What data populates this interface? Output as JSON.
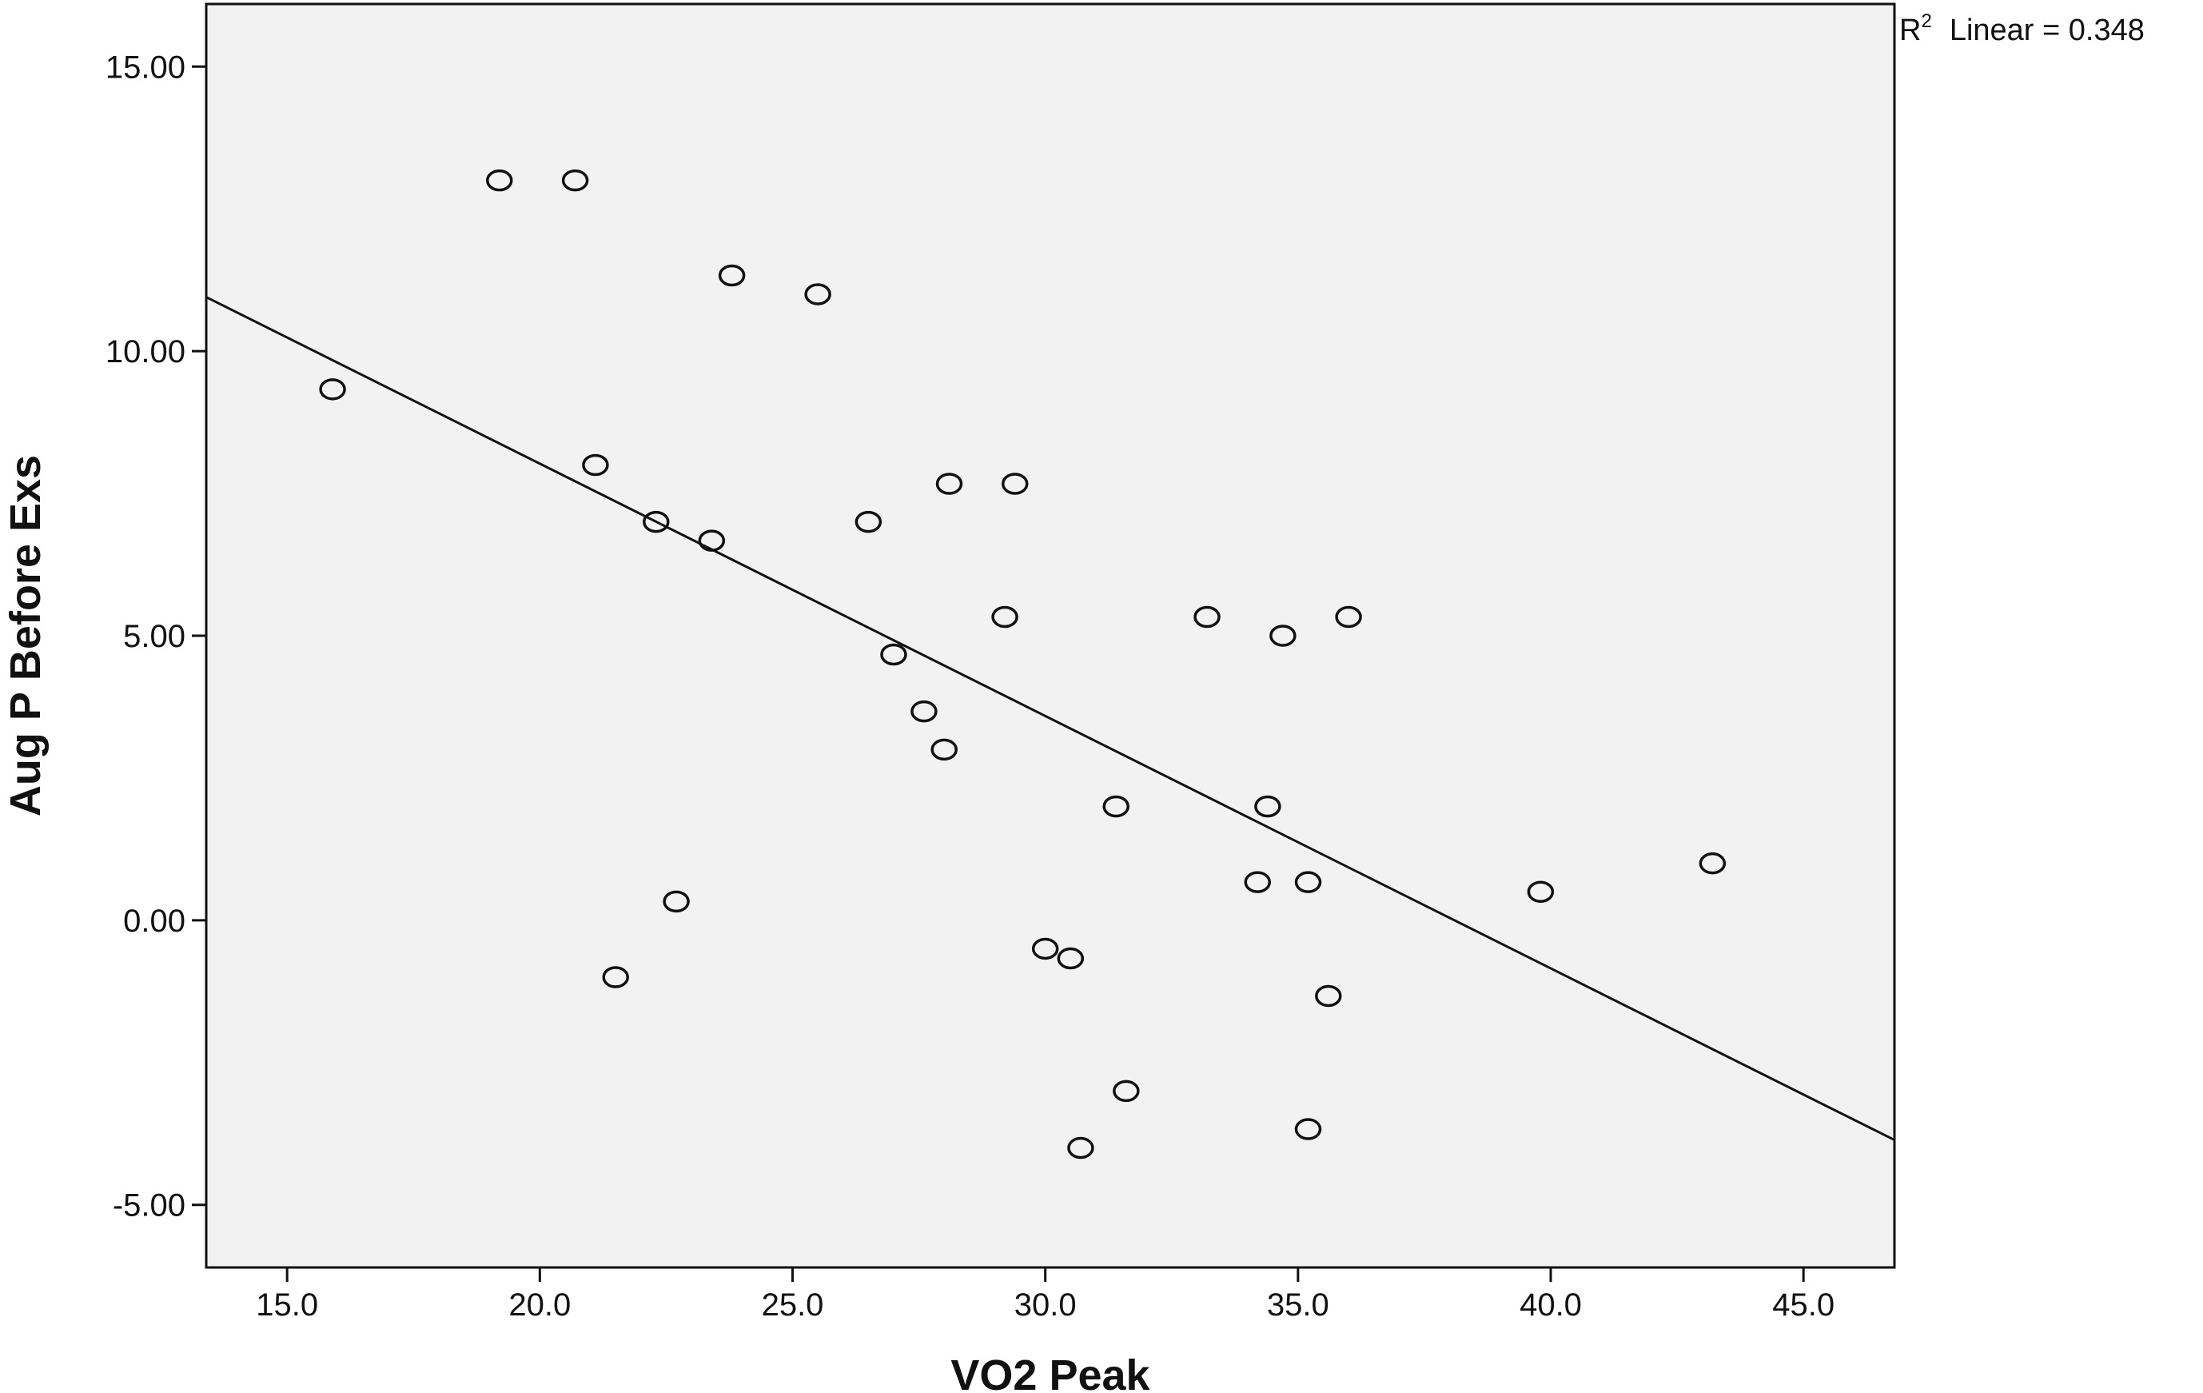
{
  "chart_data": {
    "type": "scatter",
    "title": "",
    "xlabel": "VO2 Peak",
    "ylabel": "Aug P Before Exs",
    "xlim": [
      13.4,
      46.8
    ],
    "ylim": [
      -6.1,
      16.1
    ],
    "x_ticks": [
      "15.0",
      "20.0",
      "25.0",
      "30.0",
      "35.0",
      "40.0",
      "45.0"
    ],
    "y_ticks": [
      "15.00",
      "10.00",
      "5.00",
      "0.00",
      "-5.00"
    ],
    "grid": false,
    "points": [
      {
        "x": 15.9,
        "y": 9.33
      },
      {
        "x": 19.2,
        "y": 13.0
      },
      {
        "x": 20.7,
        "y": 13.0
      },
      {
        "x": 21.1,
        "y": 8.0
      },
      {
        "x": 21.5,
        "y": -1.0
      },
      {
        "x": 22.3,
        "y": 7.0
      },
      {
        "x": 22.7,
        "y": 0.33
      },
      {
        "x": 23.4,
        "y": 6.67
      },
      {
        "x": 23.8,
        "y": 11.33
      },
      {
        "x": 25.5,
        "y": 11.0
      },
      {
        "x": 26.5,
        "y": 7.0
      },
      {
        "x": 27.0,
        "y": 4.67
      },
      {
        "x": 27.6,
        "y": 3.67
      },
      {
        "x": 28.0,
        "y": 3.0
      },
      {
        "x": 28.1,
        "y": 7.67
      },
      {
        "x": 29.2,
        "y": 5.33
      },
      {
        "x": 29.4,
        "y": 7.67
      },
      {
        "x": 30.0,
        "y": -0.5
      },
      {
        "x": 30.5,
        "y": -0.67
      },
      {
        "x": 30.7,
        "y": -4.0
      },
      {
        "x": 31.4,
        "y": 2.0
      },
      {
        "x": 31.6,
        "y": -3.0
      },
      {
        "x": 33.2,
        "y": 5.33
      },
      {
        "x": 34.2,
        "y": 0.67
      },
      {
        "x": 34.4,
        "y": 2.0
      },
      {
        "x": 34.7,
        "y": 5.0
      },
      {
        "x": 35.2,
        "y": 0.67
      },
      {
        "x": 35.2,
        "y": -3.67
      },
      {
        "x": 35.6,
        "y": -1.33
      },
      {
        "x": 36.0,
        "y": 5.33
      },
      {
        "x": 39.8,
        "y": 0.5
      },
      {
        "x": 43.2,
        "y": 1.0
      }
    ],
    "fit_line": {
      "type": "linear",
      "x": [
        13.4,
        46.8
      ],
      "y": [
        10.95,
        -3.86
      ]
    },
    "fit_label": {
      "r": "R",
      "sup": "2",
      "text": "Linear = 0.348"
    },
    "colors": {
      "background": "#f2f2f2",
      "frame": "#111111",
      "marker": "#111111",
      "line": "#111111"
    }
  }
}
